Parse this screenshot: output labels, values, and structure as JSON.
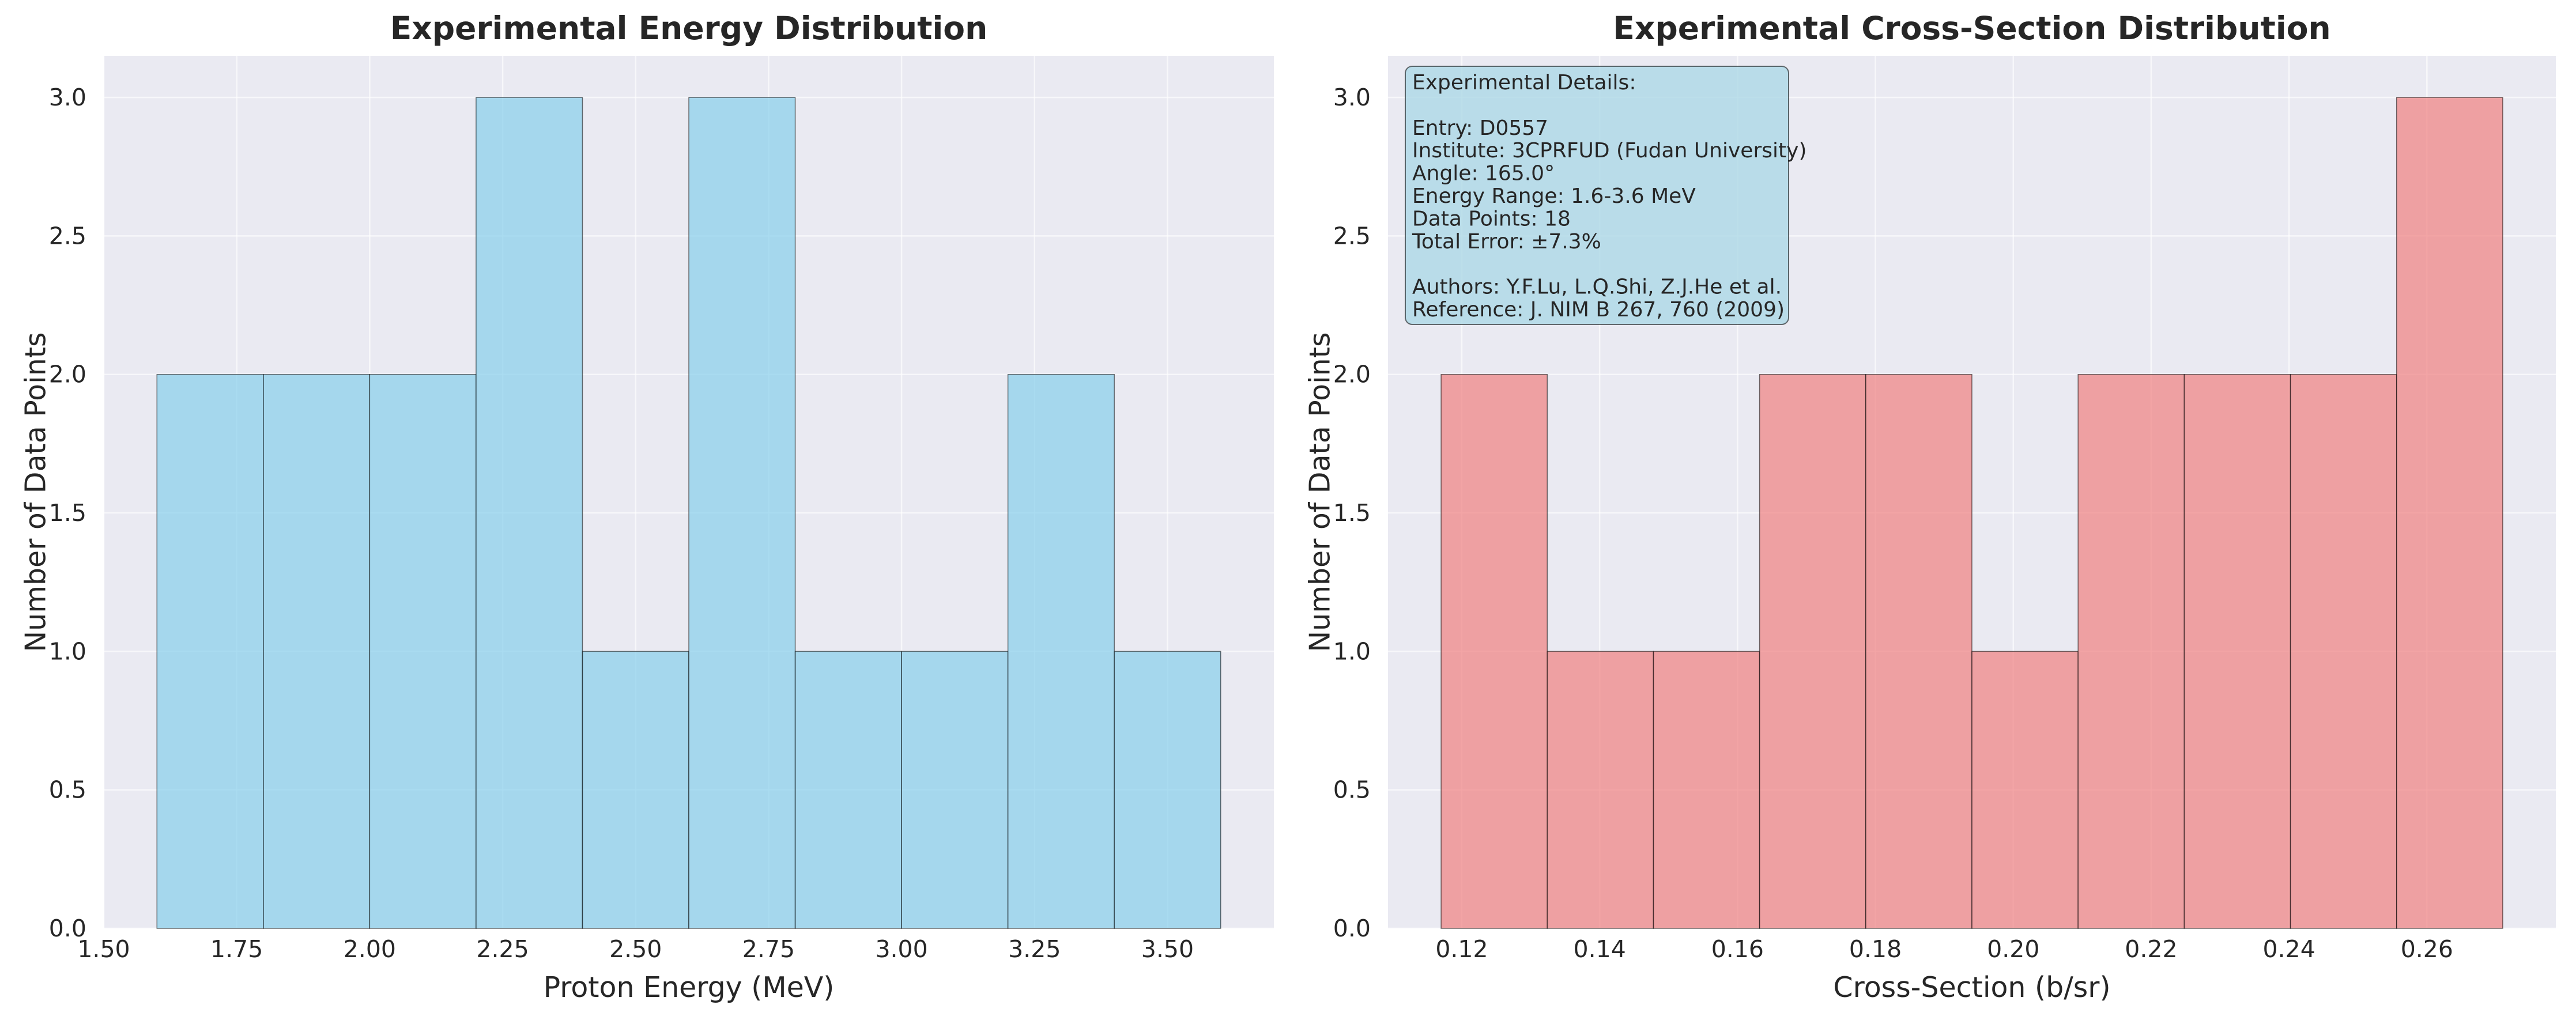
{
  "colors": {
    "background": "#ffffff",
    "plot_background": "#eaeaf2",
    "grid": "#ffffff",
    "text": "#262626",
    "energy_bar": "#87ceeb",
    "cross_section_bar": "#f08080",
    "bar_edge": "#000000",
    "info_box_fill": "#add8e6",
    "info_box_edge": "#000000"
  },
  "chart_data": [
    {
      "type": "bar",
      "subtype": "histogram",
      "title": "Experimental Energy Distribution",
      "xlabel": "Proton Energy (MeV)",
      "ylabel": "Number of Data Points",
      "bin_edges": [
        1.6,
        1.8,
        2.0,
        2.2,
        2.4,
        2.6,
        2.8,
        3.0,
        3.2,
        3.4,
        3.6
      ],
      "values": [
        2,
        2,
        2,
        3,
        1,
        3,
        1,
        1,
        2,
        1
      ],
      "xlim": [
        1.5,
        3.7
      ],
      "ylim": [
        0,
        3.15
      ],
      "xticks": [
        1.5,
        1.75,
        2.0,
        2.25,
        2.5,
        2.75,
        3.0,
        3.25,
        3.5
      ],
      "xtick_labels": [
        "1.50",
        "1.75",
        "2.00",
        "2.25",
        "2.50",
        "2.75",
        "3.00",
        "3.25",
        "3.50"
      ],
      "yticks": [
        0,
        0.5,
        1.0,
        1.5,
        2.0,
        2.5,
        3.0
      ],
      "ytick_labels": [
        "0.0",
        "0.5",
        "1.0",
        "1.5",
        "2.0",
        "2.5",
        "3.0"
      ],
      "grid": true,
      "color_key": "energy_bar",
      "bar_opacity": 0.7
    },
    {
      "type": "bar",
      "subtype": "histogram",
      "title": "Experimental Cross-Section Distribution",
      "xlabel": "Cross-Section (b/sr)",
      "ylabel": "Number of Data Points",
      "bin_edges": [
        0.117,
        0.1324,
        0.1478,
        0.1632,
        0.1786,
        0.194,
        0.2094,
        0.2248,
        0.2402,
        0.2556,
        0.271
      ],
      "values": [
        2,
        1,
        1,
        2,
        2,
        1,
        2,
        2,
        2,
        3
      ],
      "xlim": [
        0.1093,
        0.2787
      ],
      "ylim": [
        0,
        3.15
      ],
      "xticks": [
        0.12,
        0.14,
        0.16,
        0.18,
        0.2,
        0.22,
        0.24,
        0.26
      ],
      "xtick_labels": [
        "0.12",
        "0.14",
        "0.16",
        "0.18",
        "0.20",
        "0.22",
        "0.24",
        "0.26"
      ],
      "yticks": [
        0,
        0.5,
        1.0,
        1.5,
        2.0,
        2.5,
        3.0
      ],
      "ytick_labels": [
        "0.0",
        "0.5",
        "1.0",
        "1.5",
        "2.0",
        "2.5",
        "3.0"
      ],
      "grid": true,
      "color_key": "cross_section_bar",
      "bar_opacity": 0.7,
      "annotation": {
        "placement": "top-left",
        "lines": [
          "Experimental Details:",
          "",
          "Entry: D0557",
          "Institute: 3CPRFUD (Fudan University)",
          "Angle: 165.0°",
          "Energy Range: 1.6-3.6 MeV",
          "Data Points: 18",
          "Total Error: ±7.3%",
          "",
          "Authors: Y.F.Lu, L.Q.Shi, Z.J.He et al.",
          "Reference: J. NIM B 267, 760 (2009)"
        ]
      }
    }
  ]
}
